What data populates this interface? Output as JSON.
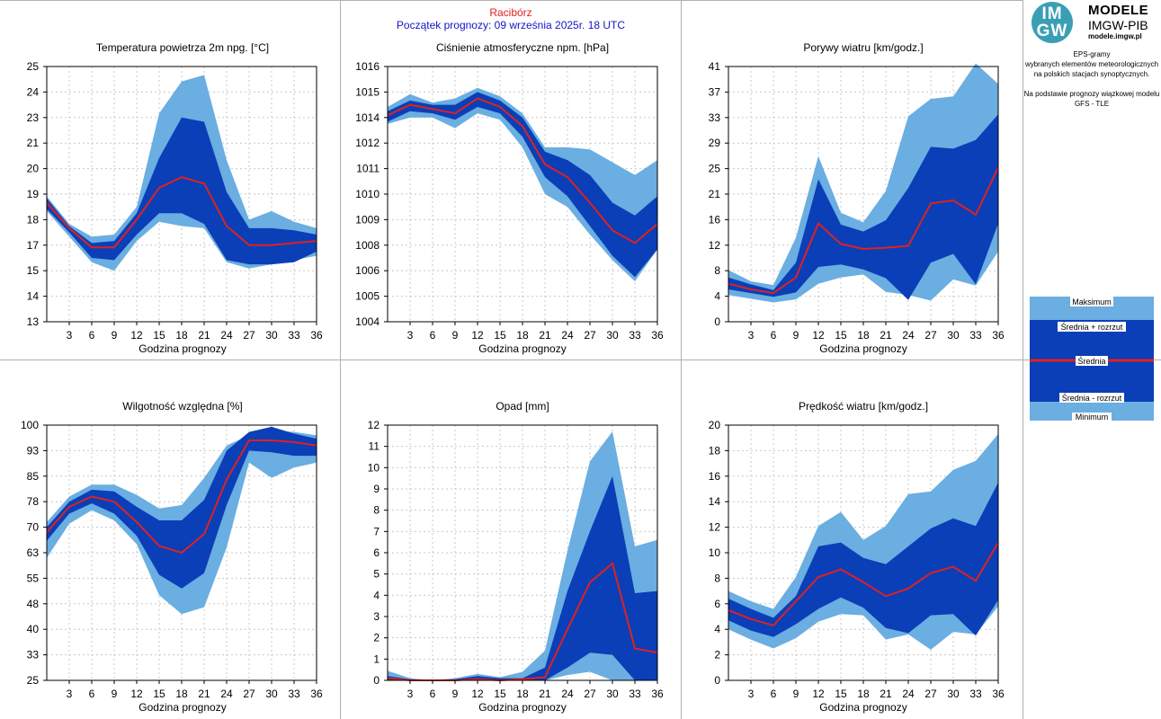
{
  "header": {
    "station": "Racibórz",
    "forecast_start": "Początek prognozy: 09 września 2025r. 18 UTC"
  },
  "sidebar": {
    "logo": "IMGW",
    "brand_title": "MODELE",
    "brand_subtitle": "IMGW-PIB",
    "brand_url": "modele.imgw.pl",
    "desc1": "EPS-gramy",
    "desc2": "wybranych elementów meteorologicznych",
    "desc3": "na polskich stacjach  synoptycznych.",
    "desc4": "Na podstawie prognozy wiązkowej modelu",
    "desc5": "GFS - TLE",
    "legend": {
      "max": "Maksimum",
      "mean_plus": "Średnia + rozrzut",
      "mean": "Średnia",
      "mean_minus": "Średnia - rozrzut",
      "min": "Minimum"
    }
  },
  "colors": {
    "outer_band": "#6aaee2",
    "inner_band": "#0a3fb8",
    "mean_line": "#e0211e",
    "station_title": "#e0211e",
    "forecast_title": "#1414c8"
  },
  "chart_data": [
    {
      "type": "area",
      "title": "Temperatura powietrza 2m npg. [°C]",
      "xlabel": "Godzina prognozy",
      "x": [
        0,
        3,
        6,
        9,
        12,
        15,
        18,
        21,
        24,
        27,
        30,
        33,
        36
      ],
      "xticks": [
        3,
        6,
        9,
        12,
        15,
        18,
        21,
        24,
        27,
        30,
        33,
        36
      ],
      "ytick_labels": [
        "13",
        "14",
        "15",
        "17",
        "18",
        "19",
        "20",
        "21",
        "23",
        "24",
        "25"
      ],
      "ylim": [
        13,
        25
      ],
      "max": [
        18.9,
        17.6,
        17.0,
        17.1,
        18.4,
        22.8,
        24.3,
        24.6,
        20.6,
        17.8,
        18.2,
        17.7,
        17.4
      ],
      "mean_plus": [
        18.8,
        17.5,
        16.7,
        16.8,
        18.1,
        20.7,
        22.6,
        22.4,
        19.1,
        17.4,
        17.4,
        17.3,
        17.1
      ],
      "mean": [
        18.6,
        17.4,
        16.5,
        16.5,
        17.8,
        19.3,
        19.8,
        19.5,
        17.5,
        16.6,
        16.6,
        16.7,
        16.8
      ],
      "mean_minus": [
        18.3,
        17.2,
        16.0,
        15.9,
        17.1,
        18.1,
        18.1,
        17.6,
        15.9,
        15.7,
        15.7,
        15.8,
        16.3
      ],
      "min": [
        18.2,
        17.0,
        15.8,
        15.4,
        16.8,
        17.7,
        17.5,
        17.4,
        15.8,
        15.5,
        15.7,
        15.9,
        16.1
      ]
    },
    {
      "type": "area",
      "title": "Ciśnienie atmosferyczne npm. [hPa]",
      "xlabel": "Godzina prognozy",
      "x": [
        0,
        3,
        6,
        9,
        12,
        15,
        18,
        21,
        24,
        27,
        30,
        33,
        36
      ],
      "xticks": [
        3,
        6,
        9,
        12,
        15,
        18,
        21,
        24,
        27,
        30,
        33,
        36
      ],
      "ytick_labels": [
        "1004",
        "1005",
        "1006",
        "1008",
        "1009",
        "1010",
        "1011",
        "1012",
        "1014",
        "1015",
        "1016"
      ],
      "ylim": [
        1004,
        1016
      ],
      "max": [
        1014.1,
        1014.7,
        1014.3,
        1014.5,
        1015.0,
        1014.6,
        1013.8,
        1012.2,
        1012.2,
        1012.1,
        1011.5,
        1010.9,
        1011.6
      ],
      "mean_plus": [
        1013.9,
        1014.4,
        1014.2,
        1014.2,
        1014.8,
        1014.4,
        1013.6,
        1012.0,
        1011.6,
        1010.9,
        1009.6,
        1009.0,
        1009.9
      ],
      "mean": [
        1013.7,
        1014.2,
        1014.0,
        1013.8,
        1014.5,
        1014.1,
        1013.2,
        1011.4,
        1010.8,
        1009.6,
        1008.3,
        1007.7,
        1008.6
      ],
      "mean_minus": [
        1013.4,
        1013.9,
        1013.8,
        1013.5,
        1014.1,
        1013.8,
        1012.7,
        1010.8,
        1009.9,
        1008.5,
        1007.1,
        1006.1,
        1007.4
      ],
      "min": [
        1013.3,
        1013.6,
        1013.6,
        1013.1,
        1013.8,
        1013.5,
        1012.2,
        1010.0,
        1009.4,
        1008.1,
        1006.9,
        1005.9,
        1007.4
      ]
    },
    {
      "type": "area",
      "title": "Porywy wiatru [km/godz.]",
      "xlabel": "Godzina prognozy",
      "x": [
        0,
        3,
        6,
        9,
        12,
        15,
        18,
        21,
        24,
        27,
        30,
        33,
        36
      ],
      "xticks": [
        3,
        6,
        9,
        12,
        15,
        18,
        21,
        24,
        27,
        30,
        33,
        36
      ],
      "ytick_labels": [
        "0",
        "4",
        "8",
        "12",
        "16",
        "21",
        "25",
        "29",
        "33",
        "37",
        "41"
      ],
      "ylim": [
        0,
        41
      ],
      "max": [
        8.3,
        6.5,
        5.9,
        13.5,
        26.6,
        17.5,
        16.0,
        21.0,
        33.0,
        35.8,
        36.2,
        41.5,
        38.2
      ],
      "mean_plus": [
        7.1,
        6.0,
        5.1,
        9.5,
        22.9,
        15.6,
        14.5,
        16.3,
        21.5,
        28.1,
        27.8,
        29.2,
        33.3
      ],
      "mean": [
        6.1,
        5.2,
        4.6,
        7.1,
        15.8,
        12.5,
        11.7,
        11.9,
        12.2,
        19.0,
        19.5,
        17.2,
        24.8
      ],
      "mean_minus": [
        5.2,
        4.6,
        4.0,
        4.7,
        8.8,
        9.2,
        8.4,
        7.0,
        3.5,
        9.5,
        10.9,
        6.0,
        15.8
      ],
      "min": [
        4.3,
        3.7,
        3.1,
        3.6,
        6.1,
        7.1,
        7.6,
        4.8,
        4.3,
        3.4,
        6.8,
        5.8,
        11.3
      ]
    },
    {
      "type": "area",
      "title": "Wilgotność względna [%]",
      "xlabel": "Godzina prognozy",
      "x": [
        0,
        3,
        6,
        9,
        12,
        15,
        18,
        21,
        24,
        27,
        30,
        33,
        36
      ],
      "xticks": [
        3,
        6,
        9,
        12,
        15,
        18,
        21,
        24,
        27,
        30,
        33,
        36
      ],
      "ytick_labels": [
        "25",
        "33",
        "40",
        "48",
        "55",
        "63",
        "70",
        "78",
        "85",
        "93",
        "100"
      ],
      "ylim": [
        25,
        100
      ],
      "max": [
        71.5,
        79.0,
        82.5,
        82.5,
        79.5,
        75.5,
        76.5,
        84.5,
        94.0,
        97.0,
        98.5,
        98.0,
        97.0
      ],
      "mean_plus": [
        70.0,
        77.5,
        81.0,
        80.5,
        76.0,
        72.0,
        72.0,
        78.0,
        92.5,
        98.0,
        99.5,
        97.5,
        96.0
      ],
      "mean": [
        68.5,
        76.0,
        79.0,
        77.5,
        71.5,
        64.5,
        62.5,
        68.0,
        84.0,
        95.5,
        95.5,
        95.0,
        94.0
      ],
      "mean_minus": [
        66.0,
        74.0,
        77.0,
        74.0,
        67.5,
        56.0,
        52.0,
        56.5,
        76.5,
        92.5,
        92.0,
        91.0,
        91.0
      ],
      "min": [
        61.0,
        71.0,
        75.0,
        72.0,
        65.0,
        50.0,
        44.5,
        46.5,
        64.0,
        89.0,
        84.5,
        87.5,
        89.0
      ]
    },
    {
      "type": "area",
      "title": "Opad [mm]",
      "xlabel": "Godzina prognozy",
      "x": [
        0,
        3,
        6,
        9,
        12,
        15,
        18,
        21,
        24,
        27,
        30,
        33,
        36
      ],
      "xticks": [
        3,
        6,
        9,
        12,
        15,
        18,
        21,
        24,
        27,
        30,
        33,
        36
      ],
      "ytick_labels": [
        "0",
        "1",
        "2",
        "3",
        "4",
        "5",
        "6",
        "7",
        "8",
        "9",
        "10",
        "11",
        "12"
      ],
      "ylim": [
        0,
        12
      ],
      "max": [
        0.45,
        0.1,
        0.0,
        0.1,
        0.3,
        0.15,
        0.4,
        1.4,
        6.1,
        10.3,
        11.7,
        6.3,
        6.6
      ],
      "mean_plus": [
        0.2,
        0.05,
        0.0,
        0.05,
        0.2,
        0.1,
        0.1,
        0.6,
        4.2,
        7.0,
        9.6,
        4.1,
        4.2
      ],
      "mean": [
        0.1,
        0.0,
        0.0,
        0.0,
        0.05,
        0.0,
        0.05,
        0.15,
        2.4,
        4.6,
        5.5,
        1.5,
        1.3
      ],
      "mean_minus": [
        0.0,
        0.0,
        0.0,
        0.0,
        0.0,
        0.0,
        0.0,
        0.0,
        0.6,
        1.3,
        1.2,
        0.0,
        0.0
      ],
      "min": [
        0.0,
        0.0,
        0.0,
        0.0,
        0.0,
        0.0,
        0.0,
        0.0,
        0.25,
        0.4,
        0.0,
        0.0,
        0.0
      ]
    },
    {
      "type": "area",
      "title": "Prędkość wiatru [km/godz.]",
      "xlabel": "Godzina prognozy",
      "x": [
        0,
        3,
        6,
        9,
        12,
        15,
        18,
        21,
        24,
        27,
        30,
        33,
        36
      ],
      "xticks": [
        3,
        6,
        9,
        12,
        15,
        18,
        21,
        24,
        27,
        30,
        33,
        36
      ],
      "ytick_labels": [
        "0",
        "2",
        "4",
        "6",
        "8",
        "10",
        "12",
        "14",
        "16",
        "18",
        "20"
      ],
      "ylim": [
        0,
        20
      ],
      "max": [
        7.0,
        6.2,
        5.6,
        8.1,
        12.1,
        13.2,
        11.0,
        12.1,
        14.6,
        14.8,
        16.5,
        17.2,
        19.3
      ],
      "mean_plus": [
        6.4,
        5.6,
        4.9,
        6.6,
        10.5,
        10.8,
        9.6,
        9.1,
        10.5,
        11.9,
        12.7,
        12.1,
        15.5
      ],
      "mean": [
        5.5,
        4.8,
        4.3,
        6.2,
        8.1,
        8.7,
        7.7,
        6.6,
        7.2,
        8.4,
        8.9,
        7.8,
        10.8
      ],
      "mean_minus": [
        4.7,
        3.9,
        3.4,
        4.4,
        5.6,
        6.5,
        5.7,
        4.1,
        3.7,
        5.1,
        5.2,
        3.5,
        6.3
      ],
      "min": [
        4.0,
        3.2,
        2.5,
        3.3,
        4.6,
        5.2,
        5.1,
        3.2,
        3.6,
        2.4,
        3.8,
        3.6,
        5.8
      ]
    }
  ]
}
